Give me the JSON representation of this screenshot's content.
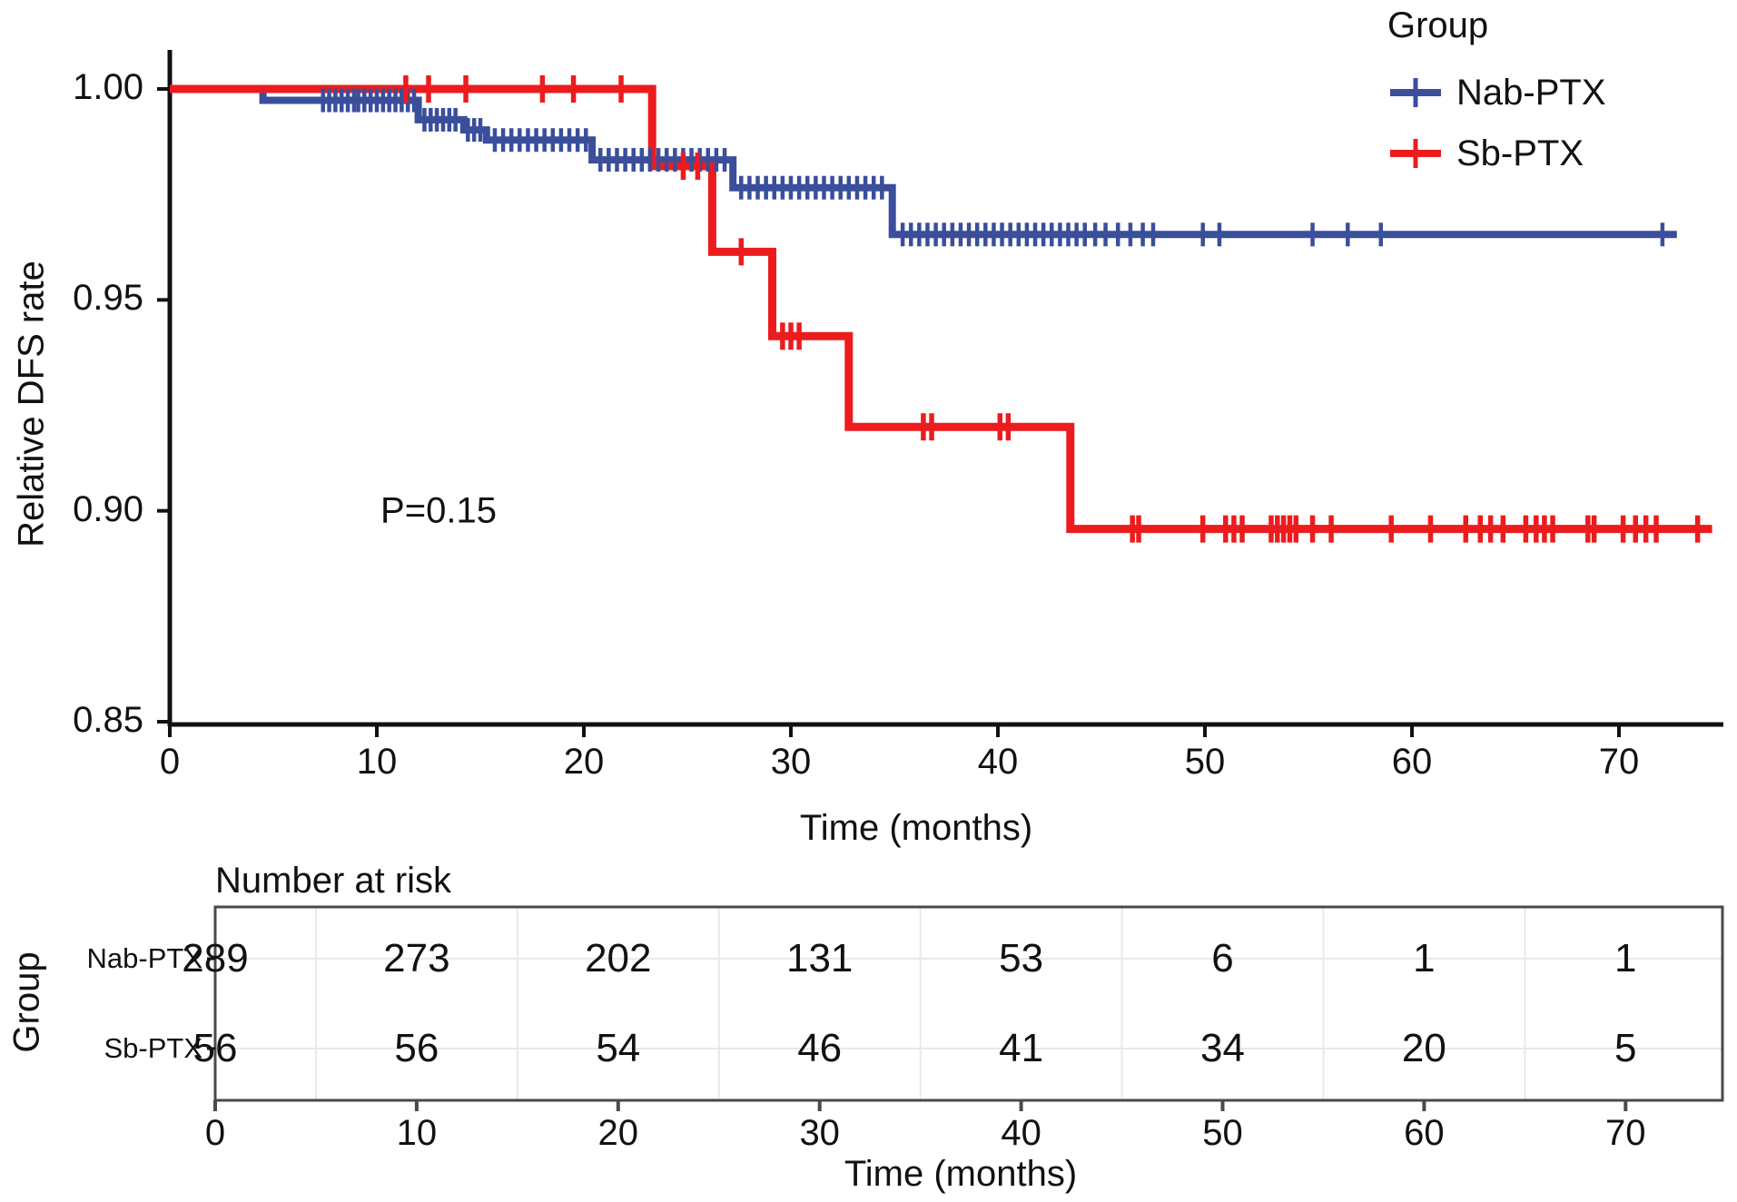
{
  "chart_data": {
    "type": "line",
    "subtype": "kaplan-meier-step",
    "title": "",
    "xlabel": "Time (months)",
    "ylabel": "Relative DFS rate",
    "annotation": "P=0.15",
    "xlim": [
      0,
      75
    ],
    "ylim": [
      0.85,
      1.005
    ],
    "x_ticks": [
      0,
      10,
      20,
      30,
      40,
      50,
      60,
      70
    ],
    "y_ticks": [
      {
        "v": 1.0,
        "label": "1.00"
      },
      {
        "v": 0.95,
        "label": "0.95"
      },
      {
        "v": 0.9,
        "label": "0.90"
      },
      {
        "v": 0.85,
        "label": "0.85"
      }
    ],
    "grid": false,
    "legend": {
      "title": "Group",
      "position": "top-right"
    },
    "colors": {
      "axis": "#111111",
      "table_border": "#4a4a4a",
      "grid_line": "#e9e9e9",
      "text": "#111111"
    },
    "series": [
      {
        "name": "Nab-PTX",
        "color": "#3A4E9B",
        "steps": [
          [
            0,
            1.0
          ],
          [
            4.5,
            1.0
          ],
          [
            4.5,
            0.9973
          ],
          [
            12.0,
            0.9973
          ],
          [
            12.0,
            0.9927
          ],
          [
            14.2,
            0.9927
          ],
          [
            14.2,
            0.9903
          ],
          [
            15.3,
            0.9903
          ],
          [
            15.3,
            0.9879
          ],
          [
            20.4,
            0.9879
          ],
          [
            20.4,
            0.9832
          ],
          [
            27.2,
            0.9832
          ],
          [
            27.2,
            0.9766
          ],
          [
            34.9,
            0.9766
          ],
          [
            34.9,
            0.9655
          ],
          [
            72.8,
            0.9655
          ]
        ],
        "censors": [
          [
            7.4,
            0.9973
          ],
          [
            7.7,
            0.9973
          ],
          [
            8.0,
            0.9973
          ],
          [
            8.3,
            0.9973
          ],
          [
            8.6,
            0.9973
          ],
          [
            8.9,
            0.9973
          ],
          [
            9.1,
            0.9973
          ],
          [
            9.4,
            0.9973
          ],
          [
            9.7,
            0.9973
          ],
          [
            10.0,
            0.9973
          ],
          [
            10.3,
            0.9973
          ],
          [
            10.6,
            0.9973
          ],
          [
            10.9,
            0.9973
          ],
          [
            11.2,
            0.9973
          ],
          [
            11.5,
            0.9973
          ],
          [
            11.8,
            0.9973
          ],
          [
            12.3,
            0.9927
          ],
          [
            12.6,
            0.9927
          ],
          [
            12.9,
            0.9927
          ],
          [
            13.2,
            0.9927
          ],
          [
            13.5,
            0.9927
          ],
          [
            13.8,
            0.9927
          ],
          [
            14.4,
            0.9903
          ],
          [
            14.7,
            0.9903
          ],
          [
            15.0,
            0.9903
          ],
          [
            15.7,
            0.9879
          ],
          [
            16.1,
            0.9879
          ],
          [
            16.5,
            0.9879
          ],
          [
            16.9,
            0.9879
          ],
          [
            17.3,
            0.9879
          ],
          [
            17.7,
            0.9879
          ],
          [
            18.1,
            0.9879
          ],
          [
            18.5,
            0.9879
          ],
          [
            18.9,
            0.9879
          ],
          [
            19.3,
            0.9879
          ],
          [
            19.7,
            0.9879
          ],
          [
            20.1,
            0.9879
          ],
          [
            20.8,
            0.9832
          ],
          [
            21.2,
            0.9832
          ],
          [
            21.6,
            0.9832
          ],
          [
            22.0,
            0.9832
          ],
          [
            22.4,
            0.9832
          ],
          [
            22.8,
            0.9832
          ],
          [
            23.2,
            0.9832
          ],
          [
            23.6,
            0.9832
          ],
          [
            24.0,
            0.9832
          ],
          [
            24.4,
            0.9832
          ],
          [
            24.8,
            0.9832
          ],
          [
            25.2,
            0.9832
          ],
          [
            25.6,
            0.9832
          ],
          [
            26.0,
            0.9832
          ],
          [
            26.4,
            0.9832
          ],
          [
            26.8,
            0.9832
          ],
          [
            27.6,
            0.9766
          ],
          [
            28.0,
            0.9766
          ],
          [
            28.4,
            0.9766
          ],
          [
            28.8,
            0.9766
          ],
          [
            29.2,
            0.9766
          ],
          [
            29.6,
            0.9766
          ],
          [
            30.0,
            0.9766
          ],
          [
            30.4,
            0.9766
          ],
          [
            30.8,
            0.9766
          ],
          [
            31.2,
            0.9766
          ],
          [
            31.6,
            0.9766
          ],
          [
            32.0,
            0.9766
          ],
          [
            32.4,
            0.9766
          ],
          [
            32.8,
            0.9766
          ],
          [
            33.2,
            0.9766
          ],
          [
            33.6,
            0.9766
          ],
          [
            34.0,
            0.9766
          ],
          [
            34.4,
            0.9766
          ],
          [
            35.4,
            0.9655
          ],
          [
            35.8,
            0.9655
          ],
          [
            36.2,
            0.9655
          ],
          [
            36.6,
            0.9655
          ],
          [
            37.0,
            0.9655
          ],
          [
            37.4,
            0.9655
          ],
          [
            37.8,
            0.9655
          ],
          [
            38.2,
            0.9655
          ],
          [
            38.6,
            0.9655
          ],
          [
            39.0,
            0.9655
          ],
          [
            39.4,
            0.9655
          ],
          [
            39.8,
            0.9655
          ],
          [
            40.2,
            0.9655
          ],
          [
            40.6,
            0.9655
          ],
          [
            41.0,
            0.9655
          ],
          [
            41.4,
            0.9655
          ],
          [
            41.8,
            0.9655
          ],
          [
            42.2,
            0.9655
          ],
          [
            42.6,
            0.9655
          ],
          [
            43.0,
            0.9655
          ],
          [
            43.4,
            0.9655
          ],
          [
            43.8,
            0.9655
          ],
          [
            44.2,
            0.9655
          ],
          [
            44.7,
            0.9655
          ],
          [
            45.2,
            0.9655
          ],
          [
            45.8,
            0.9655
          ],
          [
            46.4,
            0.9655
          ],
          [
            47.0,
            0.9655
          ],
          [
            47.5,
            0.9655
          ],
          [
            49.9,
            0.9655
          ],
          [
            50.7,
            0.9655
          ],
          [
            55.2,
            0.9655
          ],
          [
            56.9,
            0.9655
          ],
          [
            58.5,
            0.9655
          ],
          [
            72.1,
            0.9655
          ]
        ]
      },
      {
        "name": "Sb-PTX",
        "color": "#EC1C1E",
        "steps": [
          [
            0,
            1.0
          ],
          [
            23.3,
            1.0
          ],
          [
            23.3,
            0.9817
          ],
          [
            26.2,
            0.9817
          ],
          [
            26.2,
            0.9614
          ],
          [
            29.1,
            0.9614
          ],
          [
            29.1,
            0.9414
          ],
          [
            32.8,
            0.9414
          ],
          [
            32.8,
            0.9199
          ],
          [
            43.5,
            0.9199
          ],
          [
            43.5,
            0.8957
          ],
          [
            74.5,
            0.8957
          ]
        ],
        "censors": [
          [
            11.4,
            1.0
          ],
          [
            12.5,
            1.0
          ],
          [
            14.3,
            1.0
          ],
          [
            18.0,
            1.0
          ],
          [
            19.5,
            1.0
          ],
          [
            21.8,
            1.0
          ],
          [
            24.8,
            0.9817
          ],
          [
            25.5,
            0.9817
          ],
          [
            27.6,
            0.9614
          ],
          [
            29.6,
            0.9414
          ],
          [
            30.0,
            0.9414
          ],
          [
            30.4,
            0.9414
          ],
          [
            36.4,
            0.9199
          ],
          [
            36.8,
            0.9199
          ],
          [
            40.1,
            0.9199
          ],
          [
            40.5,
            0.9199
          ],
          [
            46.5,
            0.8957
          ],
          [
            46.8,
            0.8957
          ],
          [
            49.9,
            0.8957
          ],
          [
            51.0,
            0.8957
          ],
          [
            51.4,
            0.8957
          ],
          [
            51.8,
            0.8957
          ],
          [
            53.2,
            0.8957
          ],
          [
            53.5,
            0.8957
          ],
          [
            53.8,
            0.8957
          ],
          [
            54.1,
            0.8957
          ],
          [
            54.4,
            0.8957
          ],
          [
            55.2,
            0.8957
          ],
          [
            56.1,
            0.8957
          ],
          [
            59.0,
            0.8957
          ],
          [
            60.9,
            0.8957
          ],
          [
            62.6,
            0.8957
          ],
          [
            63.3,
            0.8957
          ],
          [
            63.8,
            0.8957
          ],
          [
            64.4,
            0.8957
          ],
          [
            65.5,
            0.8957
          ],
          [
            66.0,
            0.8957
          ],
          [
            66.4,
            0.8957
          ],
          [
            66.8,
            0.8957
          ],
          [
            68.5,
            0.8957
          ],
          [
            68.8,
            0.8957
          ],
          [
            70.2,
            0.8957
          ],
          [
            70.8,
            0.8957
          ],
          [
            71.3,
            0.8957
          ],
          [
            71.8,
            0.8957
          ],
          [
            73.8,
            0.8957
          ]
        ]
      }
    ],
    "risk_table": {
      "title": "Number at risk",
      "group_axis_label": "Group",
      "xlabel": "Time (months)",
      "x_ticks": [
        0,
        10,
        20,
        30,
        40,
        50,
        60,
        70
      ],
      "rows": [
        {
          "name": "Nab-PTX",
          "values": [
            289,
            273,
            202,
            131,
            53,
            6,
            1,
            1
          ]
        },
        {
          "name": "Sb-PTX",
          "values": [
            56,
            56,
            54,
            46,
            41,
            34,
            20,
            5
          ]
        }
      ]
    }
  }
}
